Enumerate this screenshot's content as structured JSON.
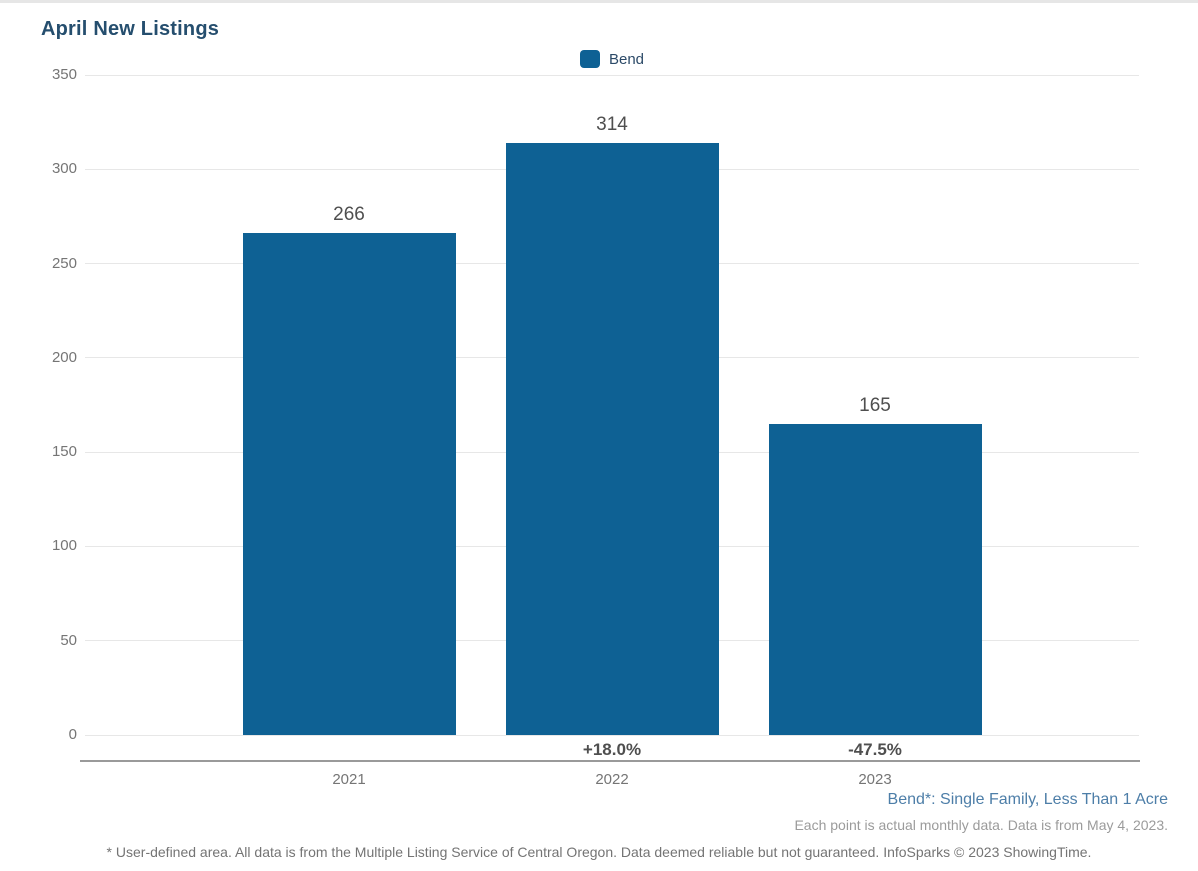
{
  "title": "April New Listings",
  "legend": {
    "label": "Bend",
    "color": "#0e6194"
  },
  "chart_data": {
    "type": "bar",
    "title": "April New Listings",
    "series_name": "Bend",
    "categories": [
      "2021",
      "2022",
      "2023"
    ],
    "values": [
      266,
      314,
      165
    ],
    "bar_labels": [
      "266",
      "314",
      "165"
    ],
    "pct_change": [
      "",
      "+18.0%",
      "-47.5%"
    ],
    "bar_color": "#0e6194",
    "ylim": [
      0,
      350
    ],
    "yticks": [
      0,
      50,
      100,
      150,
      200,
      250,
      300,
      350
    ],
    "grid": "horizontal",
    "legend_position": "top-center",
    "xlabel": "",
    "ylabel": ""
  },
  "footnotes": {
    "series_note": "Bend*: Single Family, Less Than 1 Acre",
    "data_note": "Each point is actual monthly data. Data is from May 4, 2023.",
    "disclaimer": "* User-defined area. All data is from the Multiple Listing Service of Central Oregon. Data deemed reliable but not guaranteed. InfoSparks © 2023 ShowingTime."
  }
}
